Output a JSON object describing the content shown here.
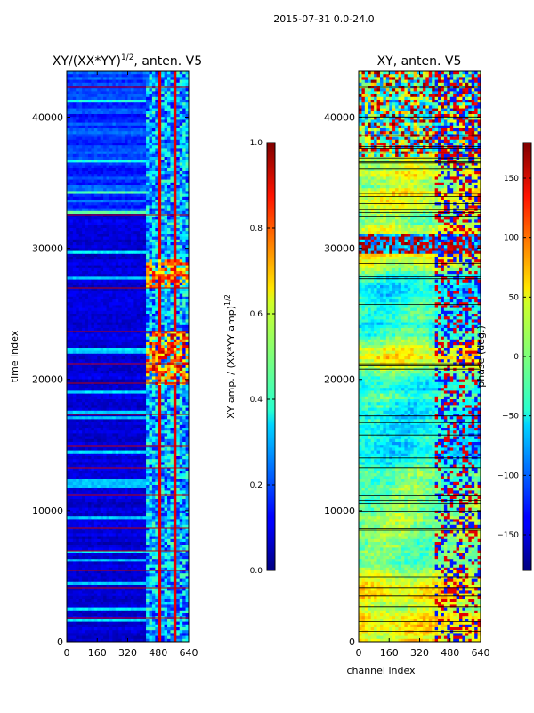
{
  "figure": {
    "suptitle": "2015-07-31 0.0-24.0"
  },
  "chart_data": [
    {
      "type": "heatmap",
      "title": "XY/(XX*YY)",
      "title_superscript": "1/2",
      "title_suffix": ", anten. V5",
      "xlabel": "",
      "ylabel": "time index",
      "xlim": [
        0,
        640
      ],
      "ylim": [
        0,
        43500
      ],
      "xticks": [
        "0",
        "160",
        "320",
        "480",
        "640"
      ],
      "yticks": [
        "0",
        "10000",
        "20000",
        "30000",
        "40000"
      ],
      "xtick_values": [
        0,
        160,
        320,
        480,
        640
      ],
      "ytick_values": [
        0,
        10000,
        20000,
        30000,
        40000
      ],
      "colormap": "jet",
      "colorbar": {
        "label": "XY amp. / (XX*YY amp)",
        "label_superscript": "1/2",
        "range": [
          0.0,
          1.0
        ],
        "ticks": [
          "0.0",
          "0.2",
          "0.4",
          "0.6",
          "0.8",
          "1.0"
        ],
        "tick_values": [
          0.0,
          0.2,
          0.4,
          0.6,
          0.8,
          1.0
        ]
      }
    },
    {
      "type": "heatmap",
      "title": "XY, anten. V5",
      "xlabel": "channel index",
      "ylabel": "",
      "xlim": [
        0,
        640
      ],
      "ylim": [
        0,
        43500
      ],
      "xticks": [
        "0",
        "160",
        "320",
        "480",
        "640"
      ],
      "yticks": [
        "0",
        "10000",
        "20000",
        "30000",
        "40000"
      ],
      "xtick_values": [
        0,
        160,
        320,
        480,
        640
      ],
      "ytick_values": [
        0,
        10000,
        20000,
        30000,
        40000
      ],
      "colormap": "jet",
      "colorbar": {
        "label": "phase (deg.)",
        "range": [
          -180,
          180
        ],
        "ticks": [
          "−150",
          "−100",
          "−50",
          "0",
          "50",
          "100",
          "150"
        ],
        "tick_values": [
          -150,
          -100,
          -50,
          0,
          50,
          100,
          150
        ]
      }
    }
  ]
}
